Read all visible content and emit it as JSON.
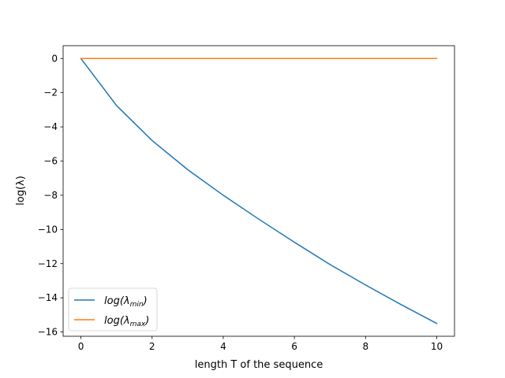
{
  "chart_data": {
    "type": "line",
    "title": "",
    "xlabel": "length T of the sequence",
    "ylabel": "log(λ)",
    "xlim": [
      -0.5,
      10.5
    ],
    "ylim": [
      -16.25,
      0.75
    ],
    "xticks": [
      0,
      2,
      4,
      6,
      8,
      10
    ],
    "yticks": [
      0,
      -2,
      -4,
      -6,
      -8,
      -10,
      -12,
      -14,
      -16
    ],
    "x": [
      0,
      1,
      2,
      3,
      4,
      5,
      6,
      7,
      8,
      9,
      10
    ],
    "series": [
      {
        "name": "log(λmin)",
        "name_base": "log(λ",
        "name_sub": "min",
        "name_close": ")",
        "color": "#1f77b4",
        "values": [
          0,
          -2.75,
          -4.8,
          -6.5,
          -8.0,
          -9.4,
          -10.75,
          -12.05,
          -13.25,
          -14.4,
          -15.5
        ]
      },
      {
        "name": "log(λmax)",
        "name_base": "log(λ",
        "name_sub": "max",
        "name_close": ")",
        "color": "#ff7f0e",
        "values": [
          0,
          0,
          0,
          0,
          0,
          0,
          0,
          0,
          0,
          0,
          0
        ]
      }
    ],
    "grid": false,
    "legend": "lower-left"
  }
}
